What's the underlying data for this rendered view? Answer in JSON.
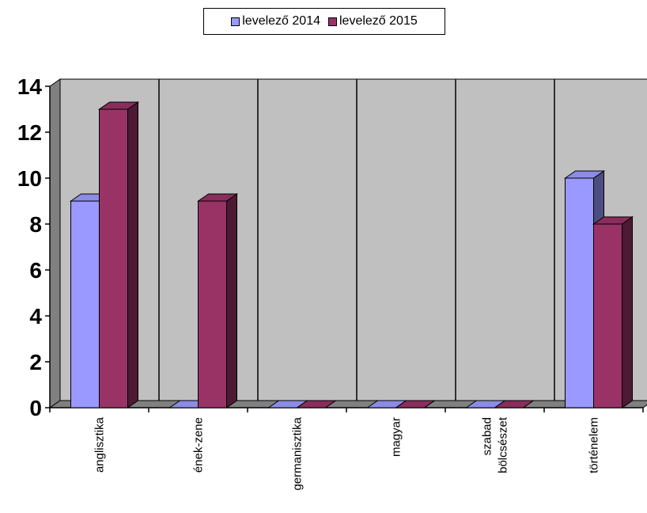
{
  "chart_data": {
    "type": "bar",
    "categories": [
      "anglisztika",
      "ének-zene",
      "germanisztika",
      "magyar",
      "szabad bölcsészet",
      "történelem"
    ],
    "category_lines": [
      [
        "anglisztika"
      ],
      [
        "ének-zene"
      ],
      [
        "germanisztika"
      ],
      [
        "magyar"
      ],
      [
        "szabad",
        "bölcsészet"
      ],
      [
        "történelem"
      ]
    ],
    "series": [
      {
        "name": "levelező 2014",
        "values": [
          9,
          0,
          0,
          0,
          0,
          10
        ],
        "color": "#9999ff",
        "side_color": "#4d4d80",
        "top_color": "#8c8ce6"
      },
      {
        "name": "levelező 2015",
        "values": [
          13,
          9,
          0,
          0,
          0,
          8
        ],
        "color": "#993366",
        "side_color": "#4d1a33",
        "top_color": "#8a2d5c"
      }
    ],
    "ylim": [
      0,
      14
    ],
    "yticks": [
      "0",
      "2",
      "4",
      "6",
      "8",
      "10",
      "12",
      "14"
    ],
    "grid": true,
    "legend_position": "top",
    "three_d": true,
    "plot_background": "#c0c0c0"
  }
}
